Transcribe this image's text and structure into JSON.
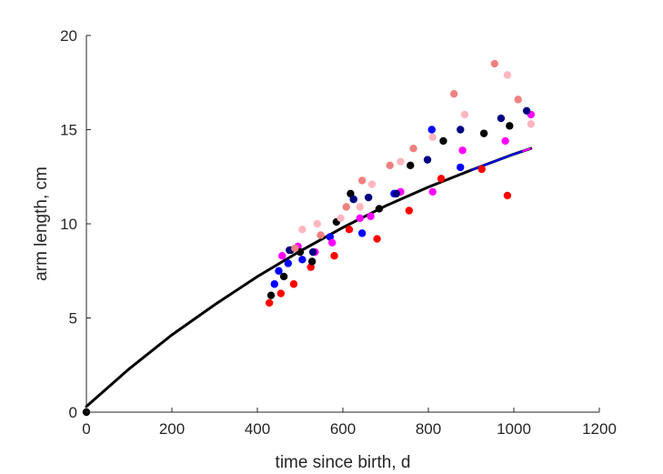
{
  "chart_data": {
    "type": "scatter",
    "xlabel": "time since birth, d",
    "ylabel": "arm length, cm",
    "xlim": [
      0,
      1200
    ],
    "ylim": [
      0,
      20
    ],
    "xticks": [
      0,
      200,
      400,
      600,
      800,
      1000,
      1200
    ],
    "yticks": [
      0,
      5,
      10,
      15,
      20
    ],
    "grid": false,
    "legend": "none",
    "series": [
      {
        "color": "#ff0000",
        "points": [
          [
            428,
            5.8
          ],
          [
            455,
            6.3
          ],
          [
            485,
            6.8
          ],
          [
            525,
            7.7
          ],
          [
            580,
            8.3
          ],
          [
            615,
            9.7
          ],
          [
            680,
            9.2
          ],
          [
            755,
            10.7
          ],
          [
            830,
            12.4
          ],
          [
            925,
            12.9
          ],
          [
            985,
            11.5
          ]
        ]
      },
      {
        "color": "#0000ff",
        "points": [
          [
            440,
            6.8
          ],
          [
            450,
            7.5
          ],
          [
            472,
            7.9
          ],
          [
            505,
            8.1
          ],
          [
            570,
            9.3
          ],
          [
            625,
            11.3
          ],
          [
            645,
            9.5
          ],
          [
            720,
            11.6
          ],
          [
            808,
            15.0
          ],
          [
            875,
            13.0
          ]
        ]
      },
      {
        "color": "#ff00ff",
        "points": [
          [
            458,
            8.3
          ],
          [
            495,
            8.8
          ],
          [
            535,
            8.5
          ],
          [
            575,
            9.0
          ],
          [
            640,
            10.3
          ],
          [
            665,
            10.4
          ],
          [
            735,
            11.7
          ],
          [
            810,
            11.7
          ],
          [
            880,
            13.9
          ],
          [
            980,
            14.4
          ],
          [
            1040,
            15.8
          ]
        ]
      },
      {
        "color": "#000000",
        "points": [
          [
            0,
            0
          ],
          [
            432,
            6.2
          ],
          [
            462,
            7.2
          ],
          [
            478,
            8.6
          ],
          [
            500,
            8.5
          ],
          [
            528,
            8.0
          ],
          [
            585,
            10.1
          ],
          [
            618,
            11.6
          ],
          [
            685,
            10.8
          ],
          [
            758,
            13.1
          ],
          [
            835,
            14.4
          ],
          [
            930,
            14.8
          ],
          [
            990,
            15.2
          ]
        ]
      },
      {
        "color": "#000080",
        "points": [
          [
            475,
            8.6
          ],
          [
            530,
            8.5
          ],
          [
            625,
            11.3
          ],
          [
            660,
            11.4
          ],
          [
            725,
            11.6
          ],
          [
            798,
            13.4
          ],
          [
            875,
            15.0
          ],
          [
            970,
            15.6
          ],
          [
            1030,
            16.0
          ]
        ]
      },
      {
        "color": "#f08080",
        "points": [
          [
            488,
            8.7
          ],
          [
            548,
            9.4
          ],
          [
            608,
            10.9
          ],
          [
            645,
            12.3
          ],
          [
            710,
            13.1
          ],
          [
            765,
            14.0
          ],
          [
            860,
            16.9
          ],
          [
            955,
            18.5
          ],
          [
            1010,
            16.6
          ]
        ]
      },
      {
        "color": "#ffb6c1",
        "points": [
          [
            505,
            9.7
          ],
          [
            540,
            10.0
          ],
          [
            595,
            10.3
          ],
          [
            640,
            10.9
          ],
          [
            668,
            12.1
          ],
          [
            735,
            13.3
          ],
          [
            810,
            14.6
          ],
          [
            885,
            15.8
          ],
          [
            985,
            17.9
          ],
          [
            1040,
            15.3
          ]
        ]
      }
    ],
    "fit_curve": {
      "color": "#000000",
      "tail_colors": [
        "#0000ff",
        "#ff00ff"
      ],
      "points": [
        [
          0,
          0.3
        ],
        [
          100,
          2.3
        ],
        [
          200,
          4.1
        ],
        [
          300,
          5.7
        ],
        [
          400,
          7.2
        ],
        [
          500,
          8.55
        ],
        [
          600,
          9.8
        ],
        [
          700,
          10.95
        ],
        [
          800,
          11.95
        ],
        [
          900,
          12.85
        ],
        [
          1000,
          13.7
        ],
        [
          1040,
          14.0
        ]
      ]
    }
  }
}
